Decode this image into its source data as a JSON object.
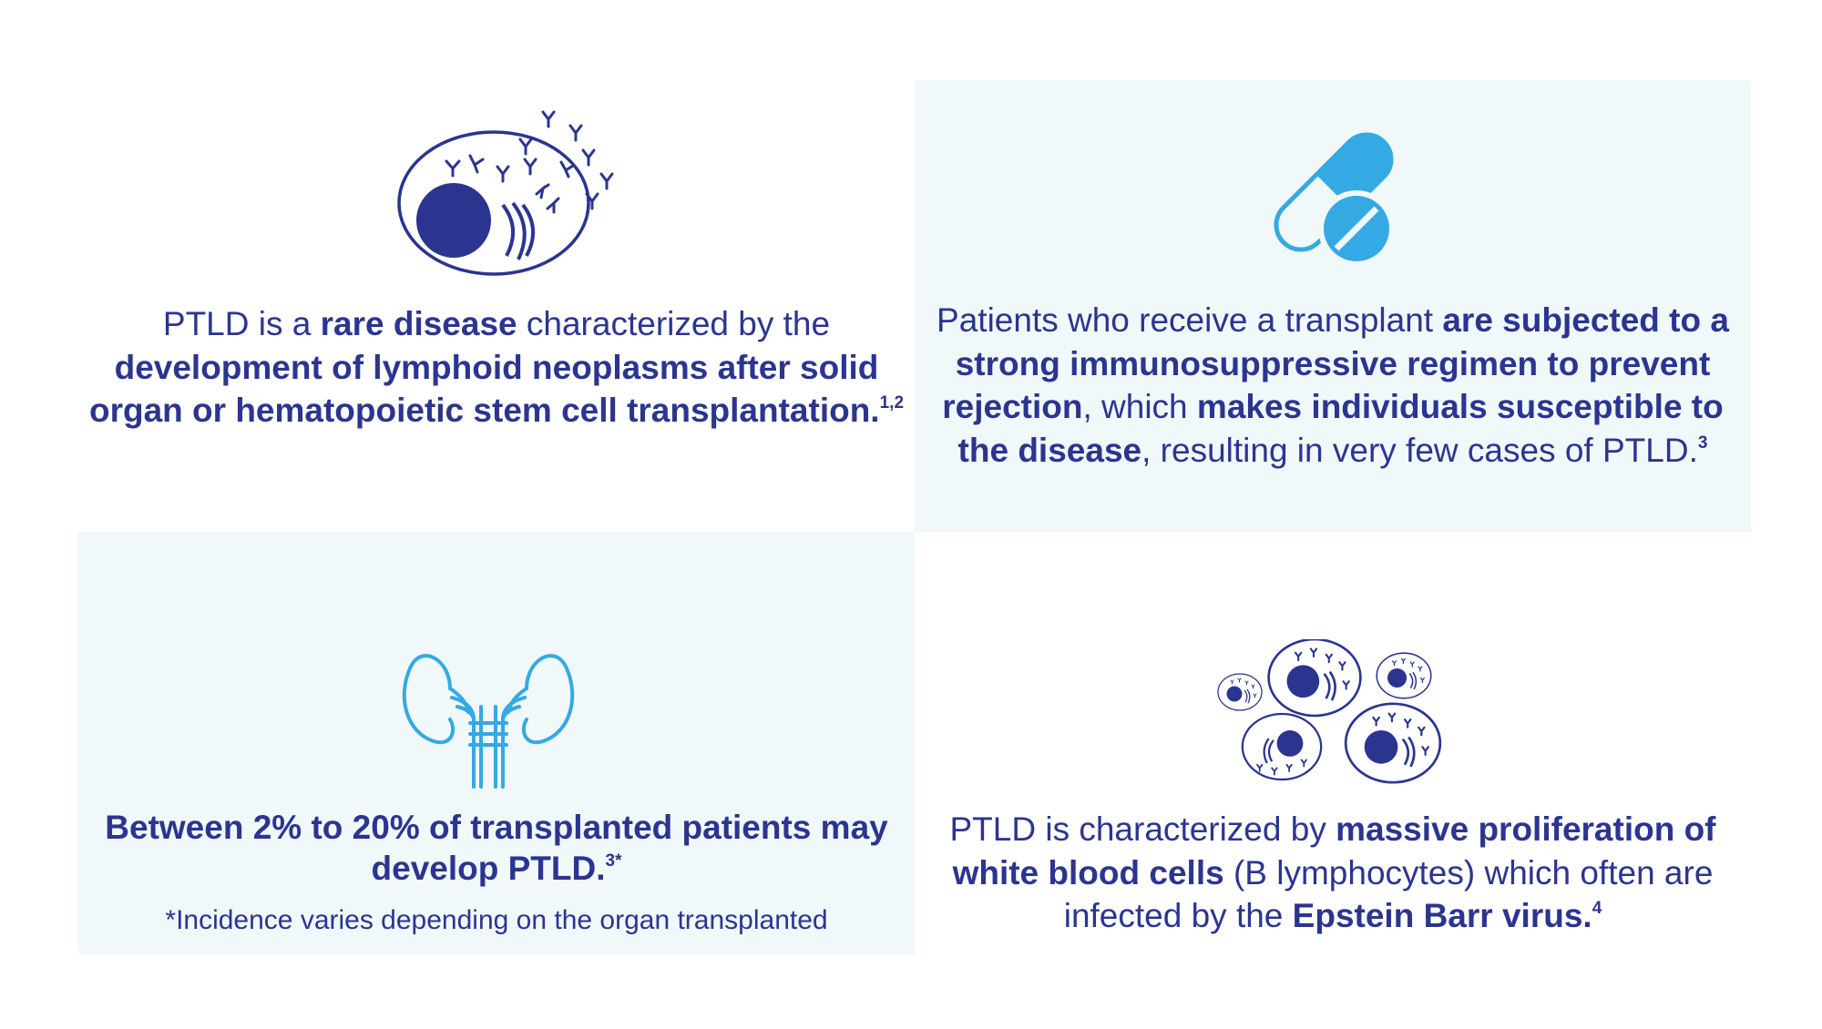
{
  "colors": {
    "navy": "#2b3590",
    "light_blue": "#35a9e3",
    "panel_tint": "#f0f8fa",
    "background": "#ffffff"
  },
  "panel1": {
    "icon": "cell-with-antibodies-icon",
    "t1": "PTLD is a ",
    "b1": "rare disease",
    "t2": " characterized by the ",
    "b2": "development of lymphoid neoplasms after solid organ or hematopoietic stem cell transplantation.",
    "ref": "1,2"
  },
  "panel2": {
    "icon": "pill-capsule-icon",
    "t1": "Patients who receive a transplant ",
    "b1": "are subjected to a strong immunosuppressive regimen to prevent rejection",
    "t2": ", which ",
    "b2": "makes individuals susceptible to the disease",
    "t3": ", resulting in very few cases of PTLD.",
    "ref": "3"
  },
  "panel3": {
    "icon": "kidneys-icon",
    "b1": "Between 2% to 20% of transplanted patients may develop PTLD.",
    "ref": "3*",
    "note": "*Incidence varies depending on the organ transplanted"
  },
  "panel4": {
    "icon": "proliferating-cells-icon",
    "t1": "PTLD is characterized by ",
    "b1": "massive proliferation of white blood cells",
    "t2": " (B lymphocytes) which often are infected by the ",
    "b2": "Epstein Barr virus.",
    "ref": "4"
  }
}
